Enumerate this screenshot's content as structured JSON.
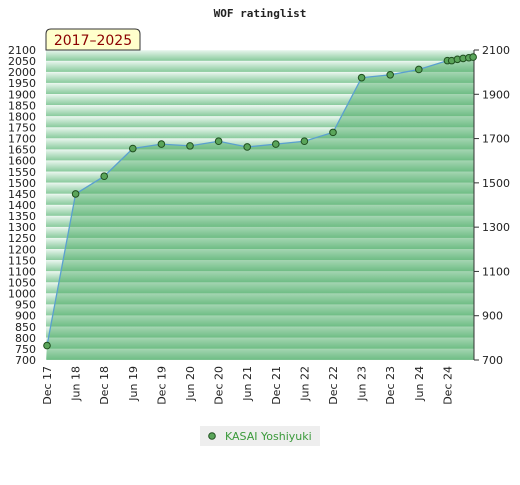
{
  "chart_data": {
    "type": "area",
    "title": "WOF ratinglist",
    "badge": "2017–2025",
    "ylim": [
      700,
      2100
    ],
    "left_ticks": [
      2100,
      2050,
      2000,
      1950,
      1900,
      1850,
      1800,
      1750,
      1700,
      1650,
      1600,
      1550,
      1500,
      1450,
      1400,
      1350,
      1300,
      1250,
      1200,
      1150,
      1100,
      1050,
      1000,
      950,
      900,
      850,
      800,
      750,
      700
    ],
    "right_ticks": [
      2100,
      1900,
      1700,
      1500,
      1300,
      1100,
      900,
      700
    ],
    "x_labels": [
      "Dec 17",
      "Jun 18",
      "Dec 18",
      "Jun 19",
      "Dec 19",
      "Jun 20",
      "Dec 20",
      "Jun 21",
      "Dec 21",
      "Jun 22",
      "Dec 22",
      "Jun 23",
      "Dec 23",
      "Jun 24",
      "Dec 24"
    ],
    "series": [
      {
        "name": "KASAI Yoshiyuki",
        "x": [
          "Dec 17",
          "Jun 18",
          "Dec 18",
          "Jun 19",
          "Dec 19",
          "Jun 20",
          "Dec 20",
          "Jun 21",
          "Dec 21",
          "Jun 22",
          "Dec 22",
          "Jun 23",
          "Dec 23",
          "Jun 24",
          "Dec 24",
          "Dec 24",
          "Jan 25",
          "Feb 25",
          "Mar 25",
          "Apr 25"
        ],
        "x_index": [
          0,
          1,
          2,
          3,
          4,
          5,
          6,
          7,
          8,
          9,
          10,
          11,
          12,
          13,
          14,
          14.15,
          14.35,
          14.55,
          14.75,
          14.9
        ],
        "values": [
          765,
          1450,
          1530,
          1655,
          1675,
          1667,
          1688,
          1662,
          1675,
          1688,
          1728,
          1975,
          1988,
          2012,
          2052,
          2052,
          2058,
          2062,
          2065,
          2068
        ]
      }
    ],
    "grid": true,
    "legend": "bottom-center",
    "colors": {
      "line": "#5aa0d0",
      "fill_dark": "#86c99a",
      "fill_light": "#e9f6ee",
      "point_fill": "#5aa55a",
      "point_stroke": "#1f4f1f",
      "badge_bg": "#ffffcc"
    }
  }
}
